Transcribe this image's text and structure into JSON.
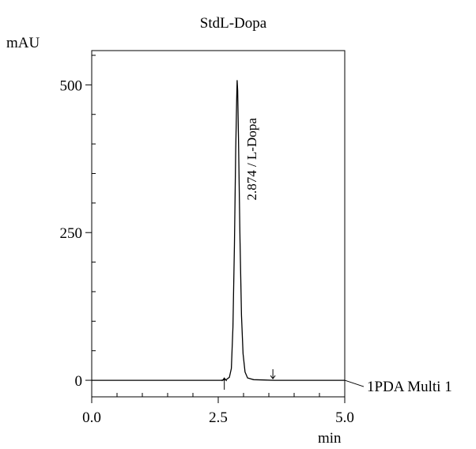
{
  "chart_data": {
    "type": "line",
    "title": "StdL-Dopa",
    "ylabel": "mAU",
    "xlabel": "min",
    "xlim": [
      0.0,
      5.0
    ],
    "ylim": [
      -28,
      558
    ],
    "x_ticks": [
      0.0,
      2.5,
      5.0
    ],
    "x_tick_labels": [
      "0.0",
      "2.5",
      "5.0"
    ],
    "y_ticks": [
      0,
      250,
      500
    ],
    "y_tick_labels": [
      "0",
      "250",
      "500"
    ],
    "grid": false,
    "series": [
      {
        "name": "1PDA Multi 1",
        "x": [
          0.0,
          2.55,
          2.66,
          2.72,
          2.76,
          2.79,
          2.82,
          2.845,
          2.865,
          2.874,
          2.885,
          2.9,
          2.93,
          2.96,
          2.99,
          3.03,
          3.08,
          3.2,
          3.4,
          3.6,
          5.0
        ],
        "y": [
          0,
          0,
          1,
          5,
          20,
          90,
          230,
          390,
          480,
          508,
          490,
          410,
          240,
          110,
          45,
          14,
          4,
          1,
          0.5,
          0,
          0
        ]
      }
    ],
    "peak_annotation": {
      "text": "2.874 / L-Dopa",
      "x": 2.874,
      "y": 508
    },
    "integration_markers": [
      {
        "x": 2.62,
        "direction": "up"
      },
      {
        "x": 3.58,
        "direction": "down"
      }
    ]
  }
}
